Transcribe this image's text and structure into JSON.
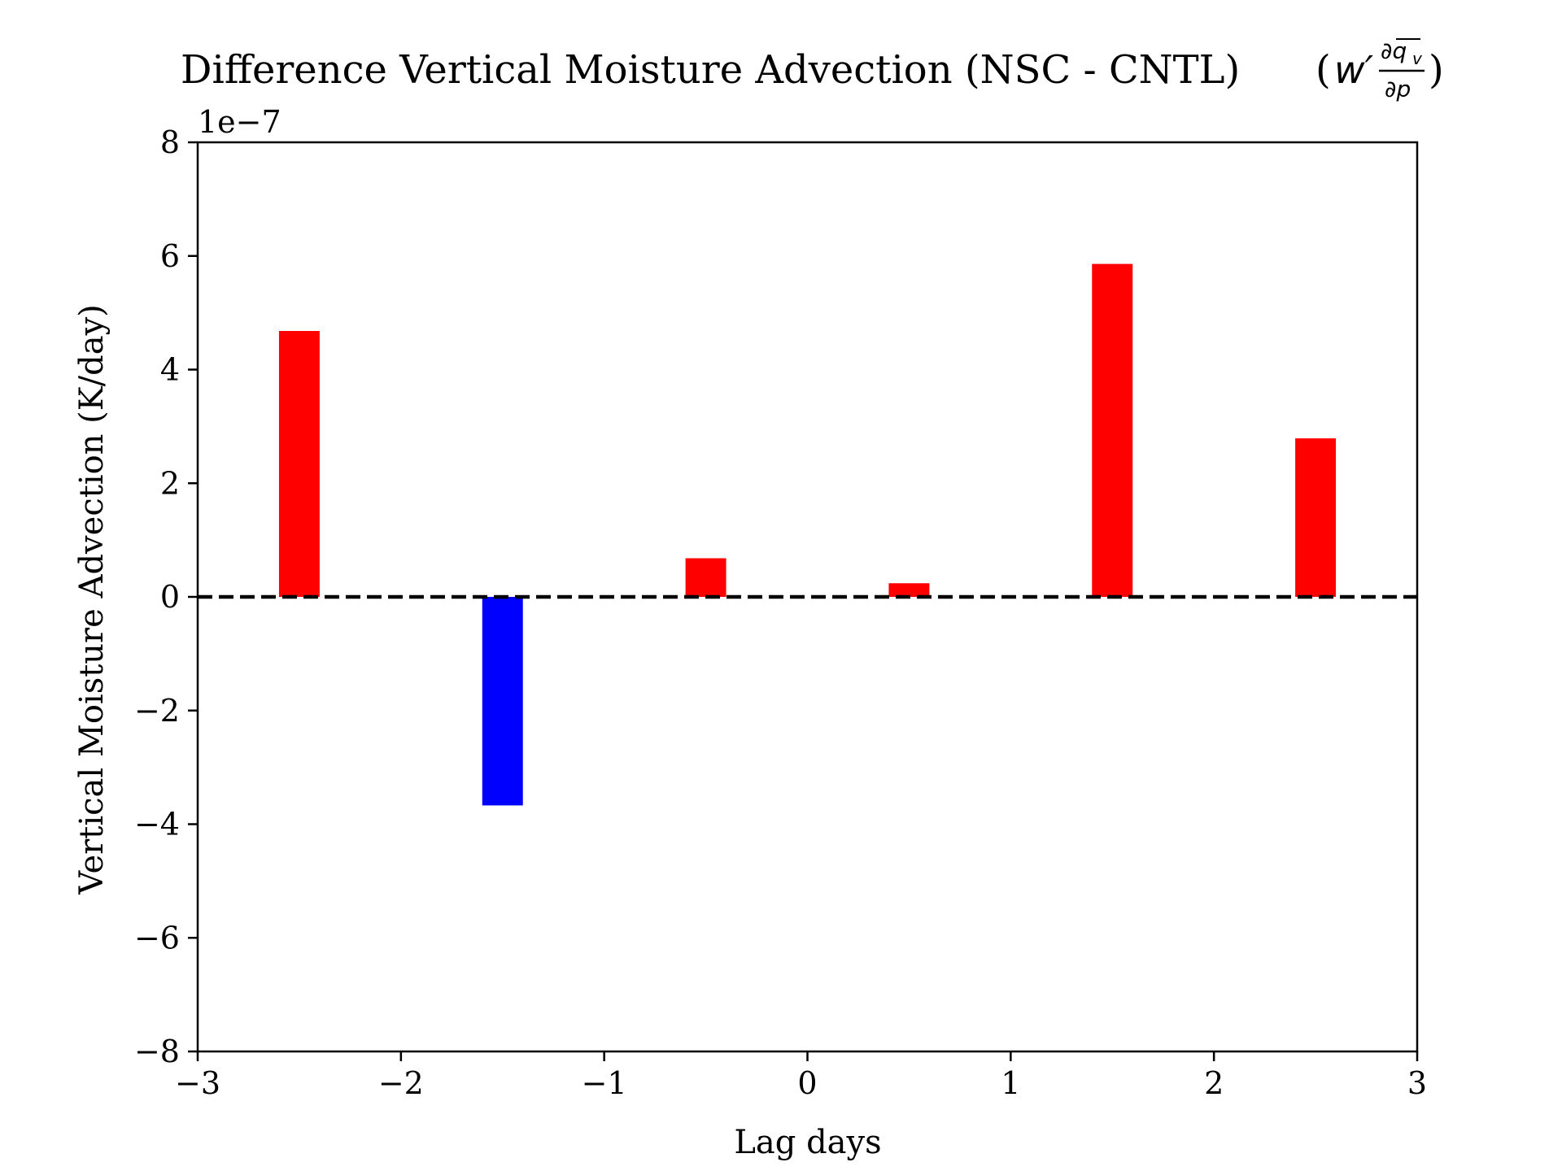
{
  "chart_data": {
    "type": "bar",
    "title": "Difference Vertical Moisture Advection (NSC - CNTL)",
    "title_formula": {
      "numerator": "∂q",
      "numerator_sub": "v",
      "denominator": "∂p",
      "prefix": "w′"
    },
    "xlabel": "Lag days",
    "ylabel": "Vertical Moisture Advection (K/day)",
    "offset_label": "1e−7",
    "xlim": [
      -3,
      3
    ],
    "ylim": [
      -8,
      8
    ],
    "scale_multiplier": 1e-07,
    "x_ticks": [
      -3,
      -2,
      -1,
      0,
      1,
      2,
      3
    ],
    "x_tick_labels": [
      "−3",
      "−2",
      "−1",
      "0",
      "1",
      "2",
      "3"
    ],
    "y_ticks": [
      -8,
      -6,
      -4,
      -2,
      0,
      2,
      4,
      6,
      8
    ],
    "y_tick_labels": [
      "−8",
      "−6",
      "−4",
      "−2",
      "0",
      "2",
      "4",
      "6",
      "8"
    ],
    "bar_width": 0.2,
    "x": [
      -2.5,
      -1.5,
      -0.5,
      0.5,
      1.5,
      2.5
    ],
    "values": [
      4.68,
      -3.67,
      0.68,
      0.24,
      5.86,
      2.79
    ],
    "positive_color": "#ff0000",
    "negative_color": "#0000ff",
    "zero_line": {
      "style": "dashed",
      "color": "#000000"
    },
    "grid": false,
    "legend": "none"
  }
}
